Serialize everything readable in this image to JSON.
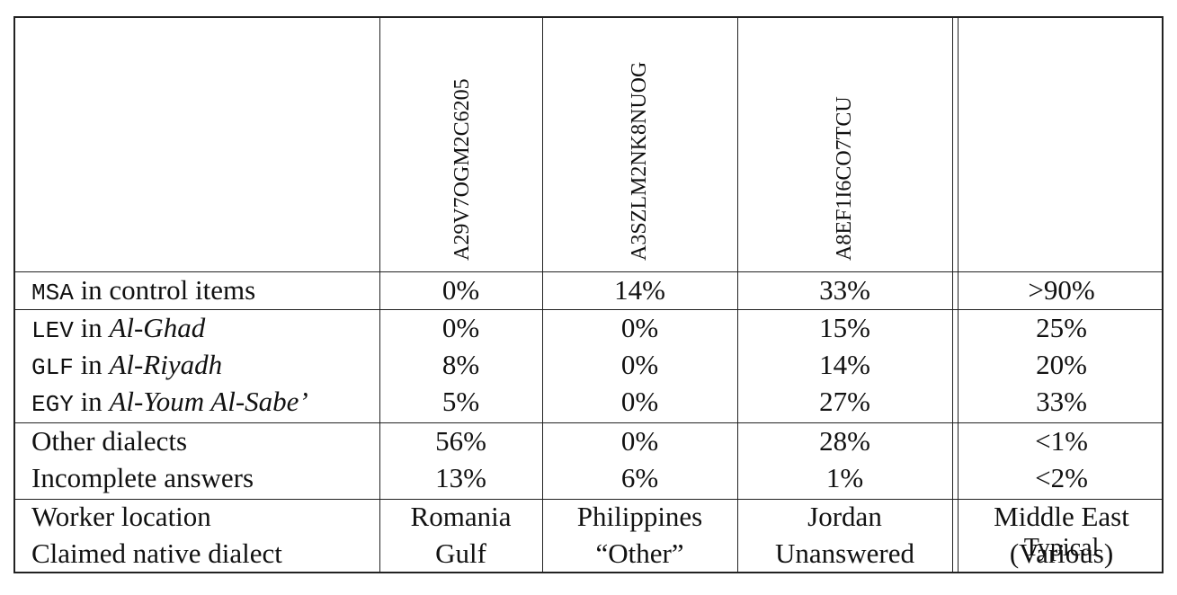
{
  "columns": {
    "worker1": "A29V7OGM2C6205",
    "worker2": "A3SZLM2NK8NUOG",
    "worker3": "A8EF1I6CO7TCU",
    "typical": "Typical"
  },
  "rows": [
    {
      "code": "MSA",
      "text": " in control items",
      "source": "",
      "v1": "0%",
      "v2": "14%",
      "v3": "33%",
      "typ": ">90%"
    },
    {
      "code": "LEV",
      "text": " in ",
      "source": "Al-Ghad",
      "v1": "0%",
      "v2": "0%",
      "v3": "15%",
      "typ": "25%"
    },
    {
      "code": "GLF",
      "text": " in ",
      "source": "Al-Riyadh",
      "v1": "8%",
      "v2": "0%",
      "v3": "14%",
      "typ": "20%"
    },
    {
      "code": "EGY",
      "text": " in ",
      "source": "Al-Youm Al-Sabe’",
      "v1": "5%",
      "v2": "0%",
      "v3": "27%",
      "typ": "33%"
    },
    {
      "code": "",
      "text": "Other dialects",
      "source": "",
      "v1": "56%",
      "v2": "0%",
      "v3": "28%",
      "typ": "<1%"
    },
    {
      "code": "",
      "text": "Incomplete answers",
      "source": "",
      "v1": "13%",
      "v2": "6%",
      "v3": "1%",
      "typ": "<2%"
    },
    {
      "code": "",
      "text": "Worker location",
      "source": "",
      "v1": "Romania",
      "v2": "Philippines",
      "v3": "Jordan",
      "typ": "Middle East"
    },
    {
      "code": "",
      "text": "Claimed native dialect",
      "source": "",
      "v1": "Gulf",
      "v2": "“Other”",
      "v3": "Unanswered",
      "typ": "(Various)"
    }
  ]
}
